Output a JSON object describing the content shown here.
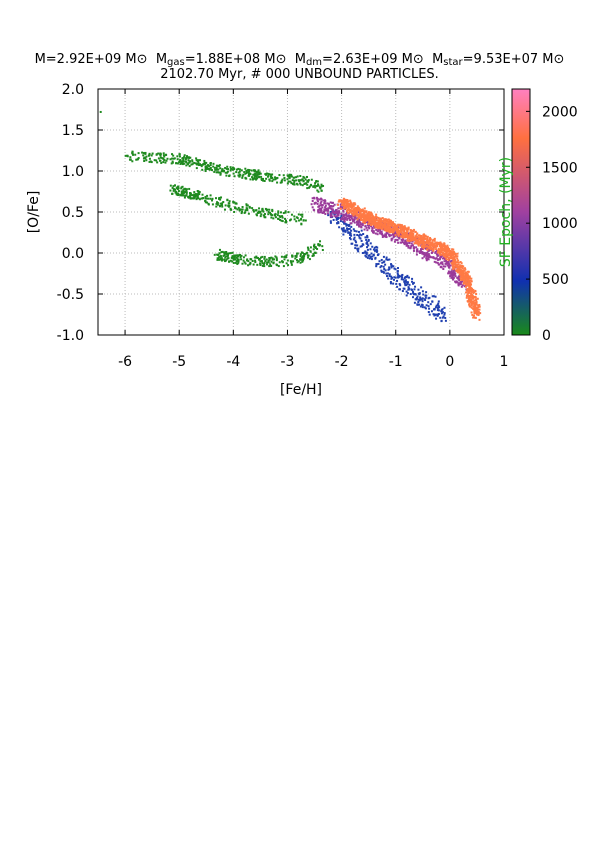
{
  "title": {
    "mass_prefix": "M=2.92E+09 M",
    "sun_symbol": "⊙",
    "gas_prefix": "M",
    "gas_sub": "gas",
    "gas_value": "=1.88E+08 M",
    "dm_prefix": "M",
    "dm_sub": "dm",
    "dm_value": "=2.63E+09 M",
    "star_prefix": "M",
    "star_sub": "star",
    "star_value": "=9.53E+07 M",
    "line2": "2102.70 Myr, # 000 UNBOUND PARTICLES."
  },
  "chart_data": {
    "type": "scatter",
    "xlabel": "[Fe/H]",
    "ylabel": "[O/Fe]",
    "xlim": [
      -6.5,
      1
    ],
    "ylim": [
      -1.0,
      2.0
    ],
    "xticks": [
      -6,
      -5,
      -4,
      -3,
      -2,
      -1,
      0,
      1
    ],
    "yticks": [
      "-1.0",
      "-0.5",
      "0.0",
      "0.5",
      "1.0",
      "1.5",
      "2.0"
    ],
    "grid": true,
    "colorbar": {
      "label": "SF Epoch, (Myr)",
      "range": [
        0,
        2200
      ],
      "ticks": [
        0,
        500,
        1000,
        1500,
        2000
      ],
      "colors": [
        "#1a8a1a",
        "#1030b0",
        "#a040a0",
        "#ff7040",
        "#ff80c0"
      ]
    },
    "series": [
      {
        "color": "#1f8a1f",
        "epoch_range": [
          0,
          400
        ],
        "points": [
          [
            -6.45,
            1.72
          ],
          [
            -5.95,
            1.18
          ],
          [
            -5.1,
            1.15
          ],
          [
            -4.8,
            1.12
          ],
          [
            -4.5,
            1.05
          ],
          [
            -4.2,
            1.0
          ],
          [
            -3.9,
            0.98
          ],
          [
            -3.6,
            0.95
          ],
          [
            -3.3,
            0.93
          ],
          [
            -3.0,
            0.9
          ],
          [
            -2.7,
            0.88
          ],
          [
            -2.4,
            0.8
          ],
          [
            -5.1,
            0.78
          ],
          [
            -4.7,
            0.7
          ],
          [
            -4.3,
            0.62
          ],
          [
            -3.9,
            0.55
          ],
          [
            -3.5,
            0.5
          ],
          [
            -3.1,
            0.45
          ],
          [
            -2.7,
            0.4
          ],
          [
            -4.3,
            -0.02
          ],
          [
            -3.9,
            -0.08
          ],
          [
            -3.5,
            -0.1
          ],
          [
            -3.1,
            -0.1
          ],
          [
            -2.7,
            -0.05
          ],
          [
            -2.4,
            0.1
          ]
        ]
      },
      {
        "color": "#2040b0",
        "epoch_range": [
          400,
          900
        ],
        "points": [
          [
            -2.2,
            0.5
          ],
          [
            -1.9,
            0.3
          ],
          [
            -1.6,
            0.1
          ],
          [
            -1.3,
            -0.1
          ],
          [
            -1.0,
            -0.3
          ],
          [
            -0.7,
            -0.45
          ],
          [
            -0.4,
            -0.6
          ],
          [
            -0.1,
            -0.75
          ]
        ]
      },
      {
        "color": "#9a3a9a",
        "epoch_range": [
          900,
          1500
        ],
        "points": [
          [
            -2.5,
            0.6
          ],
          [
            -2.1,
            0.52
          ],
          [
            -1.7,
            0.42
          ],
          [
            -1.3,
            0.3
          ],
          [
            -0.9,
            0.2
          ],
          [
            -0.5,
            0.05
          ],
          [
            -0.1,
            -0.1
          ],
          [
            0.3,
            -0.4
          ]
        ]
      },
      {
        "color": "#ff7a45",
        "epoch_range": [
          1500,
          2200
        ],
        "points": [
          [
            -2.0,
            0.62
          ],
          [
            -1.5,
            0.42
          ],
          [
            -1.0,
            0.3
          ],
          [
            -0.5,
            0.15
          ],
          [
            0.0,
            0.0
          ],
          [
            0.3,
            -0.3
          ],
          [
            0.5,
            -0.75
          ]
        ]
      }
    ]
  }
}
